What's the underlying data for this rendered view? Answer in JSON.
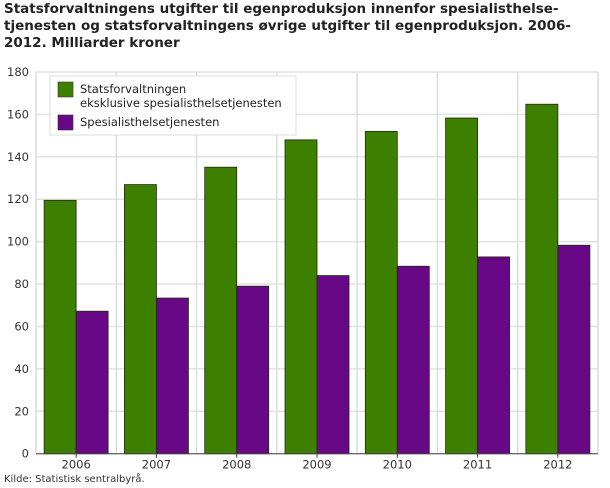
{
  "title": "Statsforvaltningens utgifter til egenproduksjon innenfor spesialisthelse-tjenesten og statsforvaltningens øvrige utgifter til egenproduksjon. 2006-2012. Milliarder kroner",
  "source": "Kilde: Statistisk sentralbyrå.",
  "chart_data": {
    "type": "bar",
    "title": "Statsforvaltningens utgifter til egenproduksjon innenfor spesialisthelse-tjenesten og statsforvaltningens øvrige utgifter til egenproduksjon. 2006-2012. Milliarder kroner",
    "xlabel": "",
    "ylabel": "",
    "ylim": [
      0,
      180
    ],
    "yticks": [
      0,
      20,
      40,
      60,
      80,
      100,
      120,
      140,
      160,
      180
    ],
    "grid": true,
    "legend_position": "top-left",
    "categories": [
      "2006",
      "2007",
      "2008",
      "2009",
      "2010",
      "2011",
      "2012"
    ],
    "series": [
      {
        "name": "Statsforvaltningen eksklusive spesialisthelsetjenesten",
        "legend_lines": [
          "Statsforvaltningen",
          "eksklusive spesialisthelsetjenesten"
        ],
        "color": "#3d8000",
        "values": [
          119.5,
          126.9,
          135.1,
          148.0,
          152.0,
          158.3,
          164.8
        ]
      },
      {
        "name": "Spesialisthelsetjenesten",
        "legend_lines": [
          "Spesialisthelsetjenesten"
        ],
        "color": "#680886",
        "values": [
          67.2,
          73.4,
          79.0,
          84.0,
          88.4,
          92.8,
          98.3
        ]
      }
    ]
  }
}
